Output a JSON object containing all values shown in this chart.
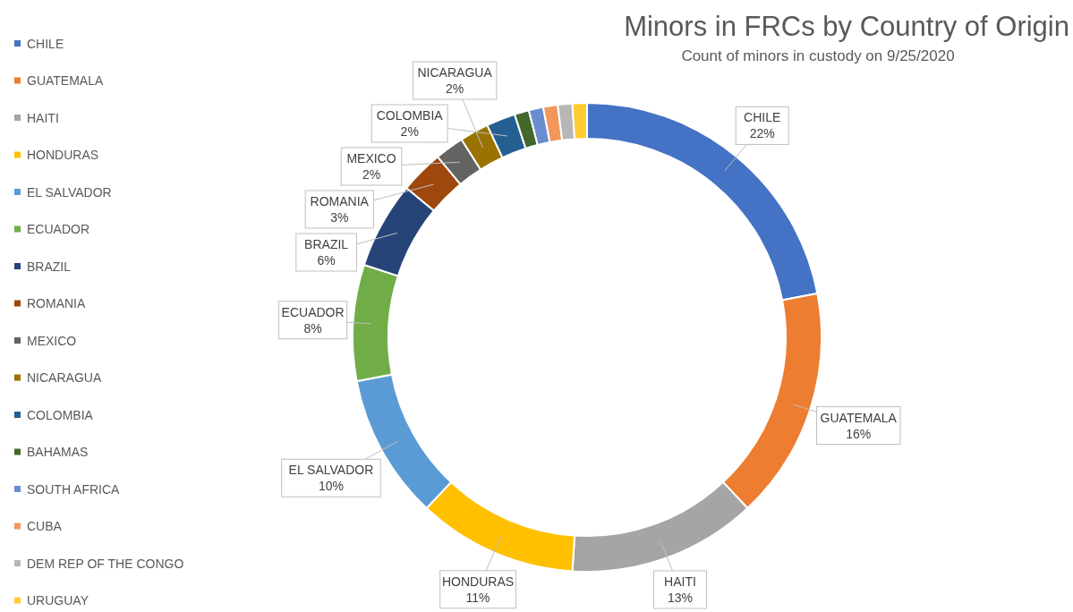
{
  "chart_data": {
    "type": "donut",
    "title": "Minors in FRCs by Country of Origin",
    "subtitle": "Count of minors in custody on 9/25/2020",
    "categories": [
      "CHILE",
      "GUATEMALA",
      "HAITI",
      "HONDURAS",
      "EL SALVADOR",
      "ECUADOR",
      "BRAZIL",
      "ROMANIA",
      "MEXICO",
      "NICARAGUA",
      "COLOMBIA",
      "BAHAMAS",
      "SOUTH AFRICA",
      "CUBA",
      "DEM REP OF THE CONGO",
      "URUGUAY"
    ],
    "values": [
      22,
      16,
      13,
      11,
      10,
      8,
      6,
      3,
      2,
      2,
      2,
      1,
      1,
      1,
      1,
      1
    ],
    "colors": [
      "#4472c4",
      "#ed7d31",
      "#a5a5a5",
      "#ffc000",
      "#5b9bd5",
      "#70ad47",
      "#264478",
      "#9e480e",
      "#636363",
      "#997300",
      "#255e91",
      "#43682b",
      "#698ed0",
      "#f1975a",
      "#b7b7b7",
      "#ffcd33"
    ],
    "value_labels": [
      "22%",
      "16%",
      "13%",
      "11%",
      "10%",
      "8%",
      "6%",
      "3%",
      "2%",
      "2%",
      "2%",
      null,
      null,
      null,
      null,
      null
    ],
    "legend": "left"
  }
}
